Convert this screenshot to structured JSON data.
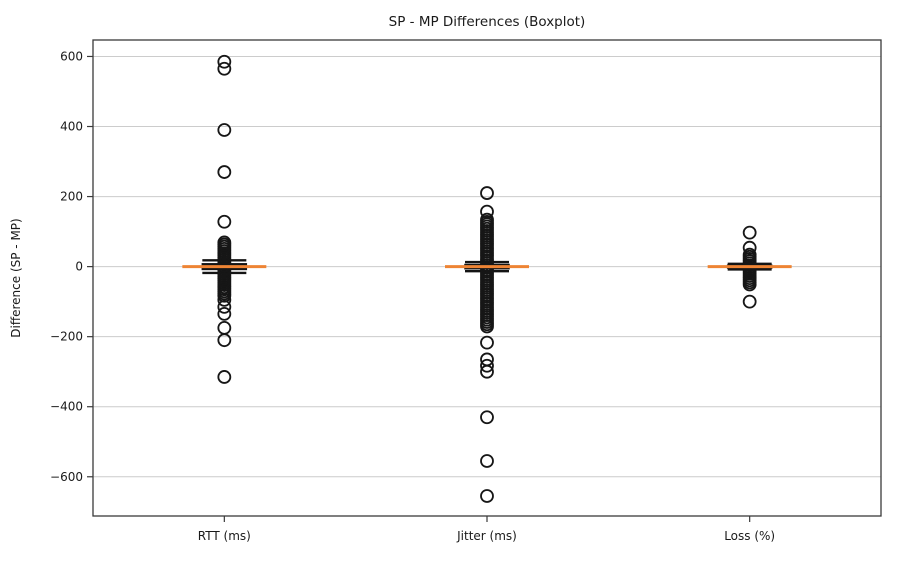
{
  "chart_data": {
    "type": "boxplot",
    "title": "SP - MP Differences (Boxplot)",
    "ylabel": "Difference (SP - MP)",
    "xlabel": "",
    "ylim": [
      -712,
      647
    ],
    "yticks": [
      600,
      400,
      200,
      0,
      -200,
      -400,
      -600
    ],
    "grid": "horizontal",
    "legend": "none",
    "categories": [
      "RTT (ms)",
      "Jitter (ms)",
      "Loss (%)"
    ],
    "series": [
      {
        "label": "RTT (ms)",
        "median": 0,
        "q1": -8,
        "q3": 8,
        "whisker_low": -18,
        "whisker_high": 18,
        "dense_fliers": {
          "min": -83,
          "max": 69,
          "count": 26
        },
        "outliers_above": [
          585,
          565,
          390,
          270,
          128
        ],
        "outliers_below": [
          -95,
          -115,
          -135,
          -175,
          -210,
          -315
        ]
      },
      {
        "label": "Jitter (ms)",
        "median": 0,
        "q1": -6,
        "q3": 6,
        "whisker_low": -13,
        "whisker_high": 13,
        "dense_fliers": {
          "min": -171,
          "max": 134,
          "count": 48
        },
        "outliers_above": [
          210,
          157
        ],
        "outliers_below": [
          -217,
          -265,
          -283,
          -300,
          -430,
          -555,
          -655
        ]
      },
      {
        "label": "Loss (%)",
        "median": 0,
        "q1": -4,
        "q3": 4,
        "whisker_low": -8,
        "whisker_high": 8,
        "dense_fliers": {
          "min": -51,
          "max": 34,
          "count": 15
        },
        "outliers_above": [
          97,
          54
        ],
        "outliers_below": [
          -100
        ]
      }
    ],
    "colors": {
      "median": "#ee8434",
      "box": "#141414",
      "flier": "#161616",
      "grid": "#cccccc",
      "spine": "#3a3a3a",
      "text": "#1a1a1a",
      "background": "#ffffff"
    }
  }
}
